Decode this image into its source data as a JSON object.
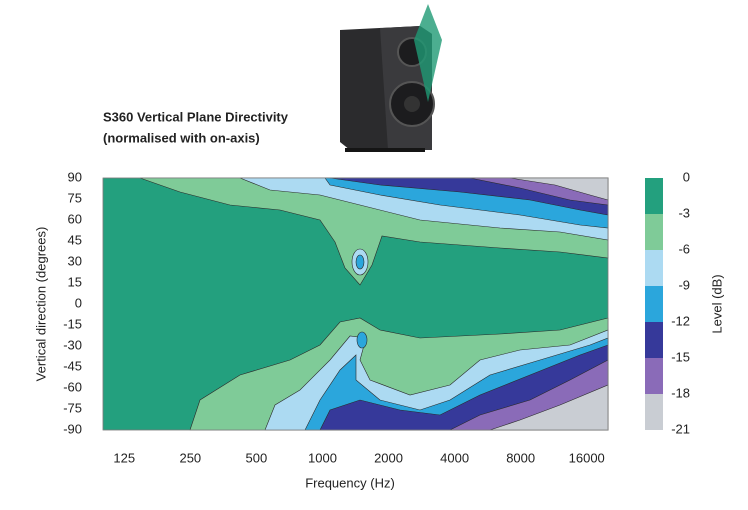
{
  "chart_data": {
    "type": "contour",
    "title": "S360 Vertical Plane Directivity",
    "subtitle": "(normalised with on-axis)",
    "x_label": "Frequency (Hz)",
    "y_label": "Vertical direction (degrees)",
    "colorbar_label": "Level (dB)",
    "xscale": "log",
    "xlim": [
      100,
      20000
    ],
    "xticks": [
      125,
      250,
      500,
      1000,
      2000,
      4000,
      8000,
      16000
    ],
    "ylim": [
      -90,
      90
    ],
    "yticks": [
      90,
      75,
      60,
      45,
      30,
      15,
      0,
      -15,
      -30,
      -45,
      -60,
      -75,
      -90
    ],
    "levels": [
      0,
      -3,
      -6,
      -9,
      -12,
      -15,
      -18,
      -21
    ],
    "colors": [
      "#23a07e",
      "#7fcb98",
      "#acdaf2",
      "#2ba6dc",
      "#36399a",
      "#8a6bb8",
      "#c9cdd3"
    ]
  }
}
